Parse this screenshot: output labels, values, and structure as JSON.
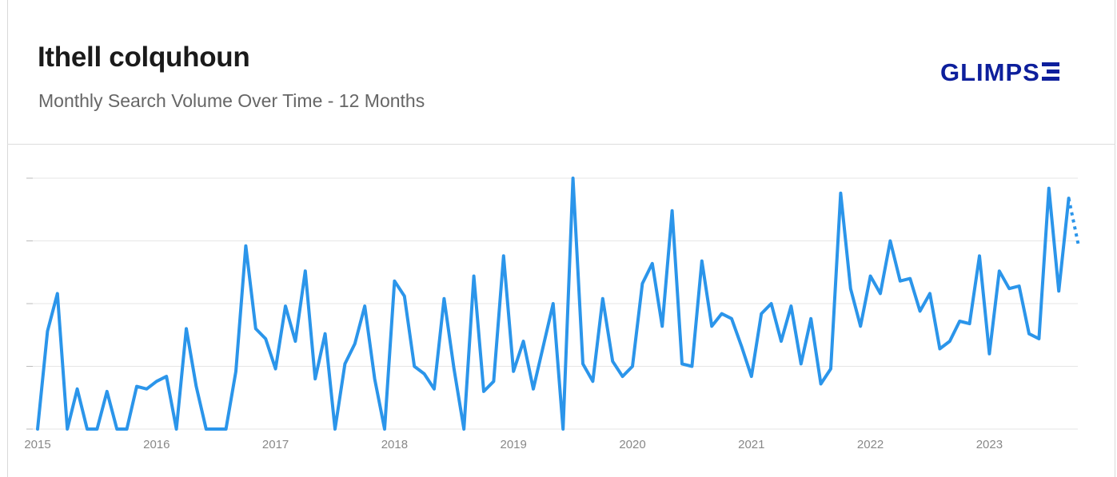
{
  "header": {
    "title": "Ithell colquhoun",
    "subtitle": "Monthly Search Volume Over Time - 12 Months",
    "logo_text": "GLIMPSE"
  },
  "colors": {
    "line": "#2b95ea",
    "grid": "#e6e6e6",
    "tick_text": "#888888",
    "logo": "#0d1f9c"
  },
  "chart_data": {
    "type": "line",
    "title": "Ithell colquhoun",
    "subtitle": "Monthly Search Volume Over Time - 12 Months",
    "x_tick_labels": [
      "2015",
      "2016",
      "2017",
      "2018",
      "2019",
      "2020",
      "2021",
      "2022",
      "2023"
    ],
    "y_tick_labels": [
      "",
      "",
      "",
      "",
      ""
    ],
    "ylim": [
      0,
      100
    ],
    "grid": true,
    "y_axis_values_shown": false,
    "x_start": "2015-01",
    "series": [
      {
        "values": [
          0,
          39,
          54,
          0,
          16,
          0,
          0,
          15,
          0,
          0,
          17,
          16,
          19,
          21,
          0,
          40,
          17,
          0,
          0,
          0,
          23,
          73,
          40,
          36,
          24,
          49,
          35,
          63,
          20,
          38,
          0,
          26,
          34,
          49,
          20,
          0,
          59,
          53,
          25,
          22,
          16,
          52,
          24,
          0,
          61,
          15,
          19,
          69,
          23,
          35,
          16,
          33,
          50,
          0,
          100,
          26,
          19,
          52,
          27,
          21,
          25,
          58,
          66,
          41,
          87,
          26,
          25,
          67,
          41,
          46,
          44,
          33,
          21,
          46,
          50,
          35,
          49,
          26,
          44,
          18,
          24,
          94,
          56,
          41,
          61,
          54,
          75,
          59,
          60,
          47,
          54,
          32,
          35,
          43,
          42,
          69,
          30,
          63,
          56,
          57,
          38,
          36,
          96,
          55,
          92
        ]
      },
      {
        "name": "",
        "style": "dotted",
        "values": [
          92,
          73
        ]
      }
    ]
  }
}
